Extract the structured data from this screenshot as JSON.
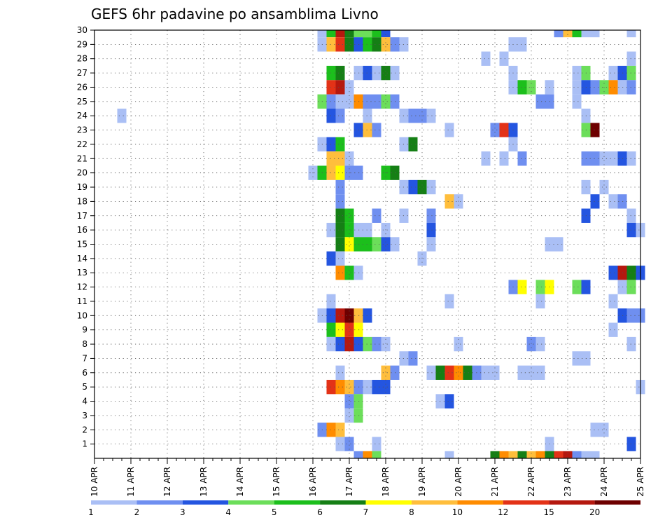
{
  "chart_data": {
    "type": "heatmap",
    "title": "GEFS 6hr padavine po ansamblima Livno",
    "x_tick_labels": [
      "10 APR",
      "11 APR",
      "12 APR",
      "13 APR",
      "14 APR",
      "15 APR",
      "16 APR",
      "17 APR",
      "18 APR",
      "19 APR",
      "20 APR",
      "21 APR",
      "22 APR",
      "23 APR",
      "24 APR",
      "25 APR"
    ],
    "y_tick_labels": [
      "1",
      "2",
      "3",
      "4",
      "5",
      "6",
      "7",
      "8",
      "9",
      "10",
      "11",
      "12",
      "13",
      "14",
      "15",
      "16",
      "17",
      "18",
      "19",
      "20",
      "21",
      "22",
      "23",
      "24",
      "25",
      "26",
      "27",
      "28",
      "29",
      "30"
    ],
    "x_range_days": [
      0,
      15
    ],
    "steps_per_day": 4,
    "y_range": [
      0,
      30
    ],
    "grid": "dotted",
    "legend": {
      "position": "bottom",
      "colors": [
        "#aabff5",
        "#6f8ff0",
        "#2455e0",
        "#6cde5a",
        "#1cbf1c",
        "#157f15",
        "#ffff00",
        "#ffbe3c",
        "#ff8c00",
        "#e33217",
        "#b5180f",
        "#6e0000"
      ],
      "labels": [
        "1",
        "2",
        "3",
        "4",
        "5",
        "6",
        "7",
        "8",
        "10",
        "12",
        "15",
        "20"
      ]
    },
    "cells": [
      [
        6.25,
        30,
        1
      ],
      [
        6.5,
        30,
        5
      ],
      [
        6.75,
        30,
        11
      ],
      [
        7,
        30,
        6
      ],
      [
        7.25,
        30,
        4
      ],
      [
        7.5,
        30,
        4
      ],
      [
        7.75,
        30,
        5
      ],
      [
        8,
        30,
        3
      ],
      [
        12.75,
        30,
        2
      ],
      [
        13,
        30,
        8
      ],
      [
        13.25,
        30,
        5
      ],
      [
        13.5,
        30,
        1
      ],
      [
        13.75,
        30,
        1
      ],
      [
        14.75,
        30,
        1
      ],
      [
        6.25,
        29,
        1
      ],
      [
        6.5,
        29,
        8
      ],
      [
        6.75,
        29,
        10
      ],
      [
        7,
        29,
        6
      ],
      [
        7.25,
        29,
        3
      ],
      [
        7.5,
        29,
        5
      ],
      [
        7.75,
        29,
        6
      ],
      [
        8,
        29,
        8
      ],
      [
        8.25,
        29,
        2
      ],
      [
        8.5,
        29,
        1
      ],
      [
        11.5,
        29,
        1
      ],
      [
        11.75,
        29,
        1
      ],
      [
        10.75,
        28,
        1
      ],
      [
        11.25,
        28,
        1
      ],
      [
        14.75,
        28,
        1
      ],
      [
        6.5,
        27,
        5
      ],
      [
        6.75,
        27,
        6
      ],
      [
        7.25,
        27,
        1
      ],
      [
        7.5,
        27,
        3
      ],
      [
        7.75,
        27,
        1
      ],
      [
        8,
        27,
        6
      ],
      [
        8.25,
        27,
        1
      ],
      [
        11.5,
        27,
        1
      ],
      [
        13.25,
        27,
        1
      ],
      [
        13.5,
        27,
        4
      ],
      [
        14.25,
        27,
        1
      ],
      [
        14.5,
        27,
        3
      ],
      [
        14.75,
        27,
        4
      ],
      [
        6.5,
        26,
        10
      ],
      [
        6.75,
        26,
        11
      ],
      [
        7,
        26,
        1
      ],
      [
        11.5,
        26,
        1
      ],
      [
        11.75,
        26,
        5
      ],
      [
        12,
        26,
        4
      ],
      [
        12.5,
        26,
        1
      ],
      [
        13.25,
        26,
        1
      ],
      [
        13.5,
        26,
        3
      ],
      [
        13.75,
        26,
        2
      ],
      [
        14,
        26,
        4
      ],
      [
        14.25,
        26,
        9
      ],
      [
        14.5,
        26,
        1
      ],
      [
        14.75,
        26,
        2
      ],
      [
        6.25,
        25,
        4
      ],
      [
        6.5,
        25,
        2
      ],
      [
        6.75,
        25,
        1
      ],
      [
        7,
        25,
        1
      ],
      [
        7.25,
        25,
        9
      ],
      [
        7.5,
        25,
        2
      ],
      [
        7.75,
        25,
        2
      ],
      [
        8,
        25,
        4
      ],
      [
        8.25,
        25,
        2
      ],
      [
        12.25,
        25,
        2
      ],
      [
        12.5,
        25,
        2
      ],
      [
        13.25,
        25,
        1
      ],
      [
        6.5,
        24,
        3
      ],
      [
        6.75,
        24,
        2
      ],
      [
        7.5,
        24,
        1
      ],
      [
        8.5,
        24,
        1
      ],
      [
        8.75,
        24,
        2
      ],
      [
        9,
        24,
        2
      ],
      [
        9.25,
        24,
        1
      ],
      [
        13.5,
        24,
        1
      ],
      [
        0.75,
        24,
        1
      ],
      [
        7.25,
        23,
        3
      ],
      [
        7.5,
        23,
        8
      ],
      [
        7.75,
        23,
        2
      ],
      [
        9.75,
        23,
        1
      ],
      [
        11,
        23,
        2
      ],
      [
        11.25,
        23,
        10
      ],
      [
        11.5,
        23,
        3
      ],
      [
        13.5,
        23,
        4
      ],
      [
        13.75,
        23,
        12
      ],
      [
        6.25,
        22,
        1
      ],
      [
        6.5,
        22,
        3
      ],
      [
        6.75,
        22,
        5
      ],
      [
        8.5,
        22,
        1
      ],
      [
        8.75,
        22,
        6
      ],
      [
        11.5,
        22,
        1
      ],
      [
        6.5,
        21,
        8
      ],
      [
        6.75,
        21,
        8
      ],
      [
        7,
        21,
        1
      ],
      [
        10.75,
        21,
        1
      ],
      [
        11.25,
        21,
        1
      ],
      [
        11.75,
        21,
        2
      ],
      [
        13.5,
        21,
        2
      ],
      [
        13.75,
        21,
        2
      ],
      [
        14,
        21,
        1
      ],
      [
        14.25,
        21,
        1
      ],
      [
        14.5,
        21,
        3
      ],
      [
        14.75,
        21,
        1
      ],
      [
        6,
        20,
        1
      ],
      [
        6.25,
        20,
        5
      ],
      [
        6.5,
        20,
        8
      ],
      [
        6.75,
        20,
        7
      ],
      [
        7,
        20,
        2
      ],
      [
        7.25,
        20,
        2
      ],
      [
        8,
        20,
        5
      ],
      [
        8.25,
        20,
        6
      ],
      [
        6.75,
        19,
        2
      ],
      [
        8.5,
        19,
        1
      ],
      [
        8.75,
        19,
        3
      ],
      [
        9,
        19,
        6
      ],
      [
        9.25,
        19,
        1
      ],
      [
        13.5,
        19,
        1
      ],
      [
        14,
        19,
        1
      ],
      [
        6.75,
        18,
        2
      ],
      [
        9.75,
        18,
        8
      ],
      [
        10,
        18,
        1
      ],
      [
        13.75,
        18,
        3
      ],
      [
        14.25,
        18,
        1
      ],
      [
        14.5,
        18,
        2
      ],
      [
        6.75,
        17,
        6
      ],
      [
        7,
        17,
        5
      ],
      [
        7.75,
        17,
        2
      ],
      [
        8.5,
        17,
        1
      ],
      [
        9.25,
        17,
        2
      ],
      [
        13.5,
        17,
        3
      ],
      [
        14.75,
        17,
        1
      ],
      [
        6.5,
        16,
        1
      ],
      [
        6.75,
        16,
        6
      ],
      [
        7,
        16,
        5
      ],
      [
        7.25,
        16,
        1
      ],
      [
        7.5,
        16,
        1
      ],
      [
        8,
        16,
        1
      ],
      [
        9.25,
        16,
        3
      ],
      [
        14.75,
        16,
        3
      ],
      [
        15,
        16,
        1
      ],
      [
        6.75,
        15,
        6
      ],
      [
        7,
        15,
        7
      ],
      [
        7.25,
        15,
        5
      ],
      [
        7.5,
        15,
        5
      ],
      [
        7.75,
        15,
        4
      ],
      [
        8,
        15,
        3
      ],
      [
        8.25,
        15,
        1
      ],
      [
        9.25,
        15,
        1
      ],
      [
        12.5,
        15,
        1
      ],
      [
        12.75,
        15,
        1
      ],
      [
        6.5,
        14,
        3
      ],
      [
        6.75,
        14,
        1
      ],
      [
        9,
        14,
        1
      ],
      [
        6.75,
        13,
        9
      ],
      [
        7,
        13,
        5
      ],
      [
        7.25,
        13,
        1
      ],
      [
        14.25,
        13,
        3
      ],
      [
        14.5,
        13,
        11
      ],
      [
        14.75,
        13,
        6
      ],
      [
        15,
        13,
        3
      ],
      [
        11.5,
        12,
        2
      ],
      [
        11.75,
        12,
        7
      ],
      [
        12.25,
        12,
        4
      ],
      [
        12.5,
        12,
        7
      ],
      [
        13.25,
        12,
        4
      ],
      [
        13.5,
        12,
        3
      ],
      [
        14.5,
        12,
        1
      ],
      [
        14.75,
        12,
        4
      ],
      [
        6.5,
        11,
        1
      ],
      [
        9.75,
        11,
        1
      ],
      [
        12.25,
        11,
        1
      ],
      [
        14.25,
        11,
        1
      ],
      [
        6.25,
        10,
        1
      ],
      [
        6.5,
        10,
        3
      ],
      [
        6.75,
        10,
        11
      ],
      [
        7,
        10,
        12
      ],
      [
        7.25,
        10,
        8
      ],
      [
        7.5,
        10,
        3
      ],
      [
        14.5,
        10,
        3
      ],
      [
        14.75,
        10,
        2
      ],
      [
        15,
        10,
        2
      ],
      [
        6.5,
        9,
        5
      ],
      [
        6.75,
        9,
        7
      ],
      [
        7,
        9,
        10
      ],
      [
        7.25,
        9,
        7
      ],
      [
        14.25,
        9,
        1
      ],
      [
        6.5,
        8,
        1
      ],
      [
        6.75,
        8,
        3
      ],
      [
        7,
        8,
        11
      ],
      [
        7.25,
        8,
        3
      ],
      [
        7.5,
        8,
        4
      ],
      [
        7.75,
        8,
        2
      ],
      [
        8,
        8,
        1
      ],
      [
        10,
        8,
        1
      ],
      [
        12,
        8,
        2
      ],
      [
        12.25,
        8,
        1
      ],
      [
        14.75,
        8,
        1
      ],
      [
        8.5,
        7,
        1
      ],
      [
        8.75,
        7,
        2
      ],
      [
        13.25,
        7,
        1
      ],
      [
        13.5,
        7,
        1
      ],
      [
        6.75,
        6,
        1
      ],
      [
        8,
        6,
        8
      ],
      [
        8.25,
        6,
        2
      ],
      [
        9.25,
        6,
        1
      ],
      [
        9.5,
        6,
        6
      ],
      [
        9.75,
        6,
        10
      ],
      [
        10,
        6,
        9
      ],
      [
        10.25,
        6,
        6
      ],
      [
        10.5,
        6,
        2
      ],
      [
        10.75,
        6,
        1
      ],
      [
        11,
        6,
        1
      ],
      [
        11.75,
        6,
        1
      ],
      [
        12,
        6,
        1
      ],
      [
        12.25,
        6,
        1
      ],
      [
        6.5,
        5,
        10
      ],
      [
        6.75,
        5,
        9
      ],
      [
        7,
        5,
        8
      ],
      [
        7.25,
        5,
        2
      ],
      [
        7.5,
        5,
        1
      ],
      [
        7.75,
        5,
        3
      ],
      [
        8,
        5,
        3
      ],
      [
        15,
        5,
        1
      ],
      [
        7,
        4,
        2
      ],
      [
        7.25,
        4,
        4
      ],
      [
        9.5,
        4,
        1
      ],
      [
        9.75,
        4,
        3
      ],
      [
        7,
        3,
        1
      ],
      [
        7.25,
        3,
        4
      ],
      [
        6.25,
        2,
        2
      ],
      [
        6.5,
        2,
        9
      ],
      [
        6.75,
        2,
        8
      ],
      [
        13.75,
        2,
        1
      ],
      [
        14,
        2,
        1
      ],
      [
        6.75,
        1,
        1
      ],
      [
        7,
        1,
        2
      ],
      [
        7.75,
        1,
        1
      ],
      [
        12.5,
        1,
        1
      ],
      [
        14.75,
        1,
        3
      ],
      [
        7.25,
        0,
        2
      ],
      [
        7.5,
        0,
        9
      ],
      [
        7.75,
        0,
        4
      ],
      [
        9.75,
        0,
        1
      ],
      [
        11,
        0,
        6
      ],
      [
        11.25,
        0,
        9
      ],
      [
        11.5,
        0,
        8
      ],
      [
        11.75,
        0,
        6
      ],
      [
        12,
        0,
        8
      ],
      [
        12.25,
        0,
        9
      ],
      [
        12.5,
        0,
        6
      ],
      [
        12.75,
        0,
        10
      ],
      [
        13,
        0,
        11
      ],
      [
        13.25,
        0,
        2
      ],
      [
        13.5,
        0,
        1
      ],
      [
        13.75,
        0,
        1
      ]
    ]
  }
}
